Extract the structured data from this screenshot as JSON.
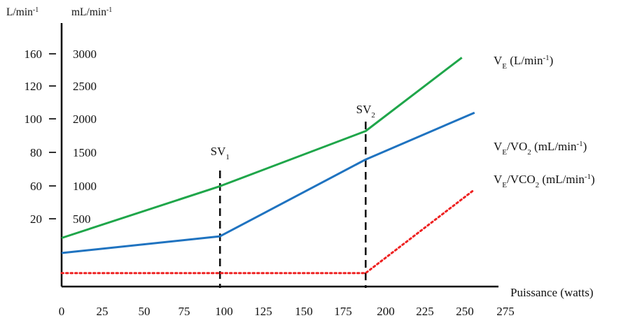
{
  "chart_data": {
    "type": "line",
    "title": "",
    "xlabel": "Puissance (watts)",
    "ylabel_left_unit": "L/min",
    "ylabel_left_unit_sup": "-1",
    "ylabel_right_unit": "mL/min",
    "ylabel_right_unit_sup": "-1",
    "x_ticks": [
      "0",
      "25",
      "50",
      "75",
      "100",
      "125",
      "150",
      "175",
      "200",
      "225",
      "250",
      "275"
    ],
    "y_left_ticks": [
      "20",
      "60",
      "80",
      "100",
      "120",
      "160"
    ],
    "y_right_ticks": [
      "500",
      "1000",
      "1500",
      "2000",
      "2500",
      "3000"
    ],
    "grid": false,
    "thresholds": [
      {
        "name": "SV",
        "sub": "1",
        "x": 112
      },
      {
        "name": "SV",
        "sub": "2",
        "x": 215
      }
    ],
    "series": [
      {
        "id": "ve",
        "name": "V",
        "name_sub": "E",
        "name_suffix": " (L/min",
        "name_sup": "-1",
        "name_close": ")",
        "color": "#1fa64a",
        "style": "solid",
        "x": [
          0,
          112,
          215,
          283
        ],
        "y": [
          9,
          40,
          73,
          117
        ]
      },
      {
        "id": "ve_vo2",
        "name": "V",
        "name_sub": "E",
        "name_suffix": "/VO",
        "name_sub2": "2",
        "name_suffix2": " (mL/min",
        "name_sup": "-1",
        "name_close": ")",
        "color": "#1f73c0",
        "style": "solid",
        "x": [
          0,
          112,
          215,
          292
        ],
        "y": [
          0,
          10,
          56,
          84
        ]
      },
      {
        "id": "ve_vco2",
        "name": "V",
        "name_sub": "E",
        "name_suffix": "/VCO",
        "name_sub2": "2",
        "name_suffix2": " (mL/min",
        "name_sup": "-1",
        "name_close": ")",
        "color": "#ee2222",
        "style": "dotted",
        "x": [
          0,
          215,
          292
        ],
        "y": [
          -12,
          -12,
          38
        ]
      }
    ]
  }
}
